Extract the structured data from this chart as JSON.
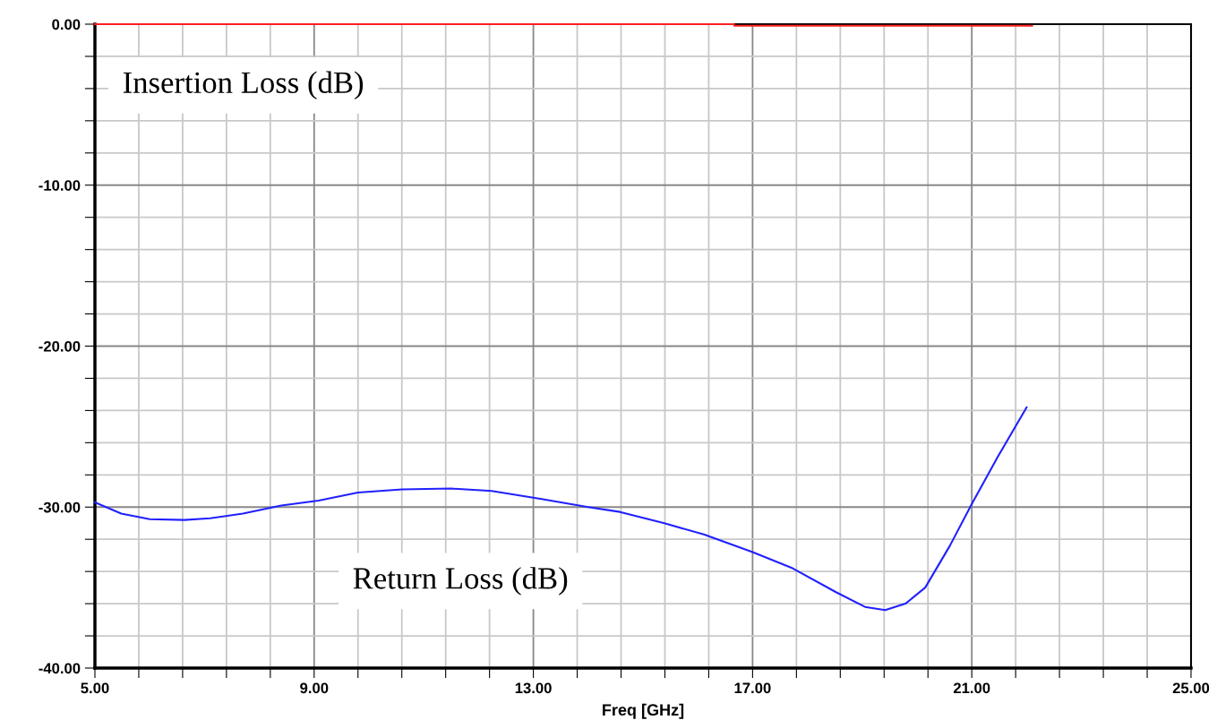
{
  "chart_data": {
    "type": "line",
    "xlabel": "Freq [GHz]",
    "annotations": [
      "Insertion Loss (dB)",
      "Return Loss (dB)"
    ],
    "xlim": [
      5,
      25
    ],
    "ylim": [
      -40,
      0
    ],
    "xticks": [
      {
        "value": 5,
        "label": "5.00"
      },
      {
        "value": 5.8,
        "label": null
      },
      {
        "value": 6.6,
        "label": null
      },
      {
        "value": 7.4,
        "label": null
      },
      {
        "value": 8.2,
        "label": null
      },
      {
        "value": 9,
        "label": "9.00"
      },
      {
        "value": 9.8,
        "label": null
      },
      {
        "value": 10.6,
        "label": null
      },
      {
        "value": 11.4,
        "label": null
      },
      {
        "value": 12.2,
        "label": null
      },
      {
        "value": 13,
        "label": "13.00"
      },
      {
        "value": 13.8,
        "label": null
      },
      {
        "value": 14.6,
        "label": null
      },
      {
        "value": 15.4,
        "label": null
      },
      {
        "value": 16.2,
        "label": null
      },
      {
        "value": 17,
        "label": "17.00"
      },
      {
        "value": 17.8,
        "label": null
      },
      {
        "value": 18.6,
        "label": null
      },
      {
        "value": 19.4,
        "label": null
      },
      {
        "value": 20.2,
        "label": null
      },
      {
        "value": 21,
        "label": "21.00"
      },
      {
        "value": 21.8,
        "label": null
      },
      {
        "value": 22.6,
        "label": null
      },
      {
        "value": 23.4,
        "label": null
      },
      {
        "value": 24.2,
        "label": null
      },
      {
        "value": 25,
        "label": "25.00"
      }
    ],
    "yticks": [
      {
        "value": -40,
        "label": "-40.00"
      },
      {
        "value": -38,
        "label": null
      },
      {
        "value": -36,
        "label": null
      },
      {
        "value": -34,
        "label": null
      },
      {
        "value": -32,
        "label": null
      },
      {
        "value": -30,
        "label": "-30.00"
      },
      {
        "value": -28,
        "label": null
      },
      {
        "value": -26,
        "label": null
      },
      {
        "value": -24,
        "label": null
      },
      {
        "value": -22,
        "label": null
      },
      {
        "value": -20,
        "label": "-20.00"
      },
      {
        "value": -18,
        "label": null
      },
      {
        "value": -16,
        "label": null
      },
      {
        "value": -14,
        "label": null
      },
      {
        "value": -12,
        "label": null
      },
      {
        "value": -10,
        "label": "-10.00"
      },
      {
        "value": -8,
        "label": null
      },
      {
        "value": -6,
        "label": null
      },
      {
        "value": -4,
        "label": null
      },
      {
        "value": -2,
        "label": null
      },
      {
        "value": 0,
        "label": "0.00"
      }
    ],
    "grid": true,
    "marker": "none",
    "line_style": "solid",
    "series": [
      {
        "color": "#ff2020",
        "x": [
          5,
          16.66,
          16.67,
          22.1
        ],
        "values": [
          0,
          0,
          -0.1,
          -0.1
        ]
      },
      {
        "color": "#2020ff",
        "x": [
          5.0,
          5.48,
          6.0,
          6.63,
          7.1,
          7.7,
          8.4,
          9.08,
          9.8,
          10.6,
          11.5,
          12.24,
          13.15,
          14.0,
          14.58,
          15.39,
          16.11,
          17.0,
          17.73,
          18.53,
          19.05,
          19.42,
          19.79,
          20.15,
          20.6,
          21.0,
          21.47,
          22.0
        ],
        "values": [
          -29.7,
          -30.4,
          -30.75,
          -30.8,
          -30.7,
          -30.4,
          -29.9,
          -29.6,
          -29.1,
          -28.9,
          -28.85,
          -29.0,
          -29.5,
          -30.0,
          -30.3,
          -31.0,
          -31.7,
          -32.8,
          -33.8,
          -35.3,
          -36.2,
          -36.4,
          -36.0,
          -35.0,
          -32.4,
          -29.8,
          -26.9,
          -23.8
        ]
      }
    ]
  }
}
